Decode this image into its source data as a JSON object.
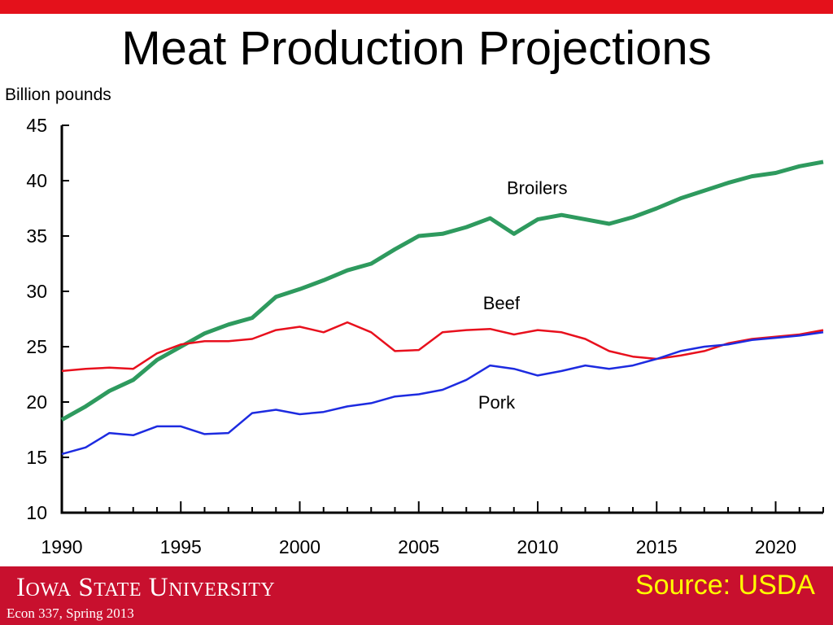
{
  "slide": {
    "title": "Meat Production Projections",
    "logo_text": "Iowa State University",
    "course": "Econ 337, Spring 2013",
    "source": "Source: USDA"
  },
  "colors": {
    "accent_red": "#e4111b",
    "footer_red": "#c8102e",
    "source_yellow": "#ffff00"
  },
  "chart_data": {
    "type": "line",
    "title": "",
    "ylabel": "Billion pounds",
    "xlabel": "",
    "xlim": [
      1990,
      2022
    ],
    "ylim": [
      10,
      45
    ],
    "x_ticks": [
      1990,
      1995,
      2000,
      2005,
      2010,
      2015,
      2020
    ],
    "y_ticks": [
      10,
      15,
      20,
      25,
      30,
      35,
      40,
      45
    ],
    "grid": false,
    "x": [
      1990,
      1991,
      1992,
      1993,
      1994,
      1995,
      1996,
      1997,
      1998,
      1999,
      2000,
      2001,
      2002,
      2003,
      2004,
      2005,
      2006,
      2007,
      2008,
      2009,
      2010,
      2011,
      2012,
      2013,
      2014,
      2015,
      2016,
      2017,
      2018,
      2019,
      2020,
      2021,
      2022
    ],
    "series": [
      {
        "name": "Broilers",
        "color": "#2e9a5e",
        "values": [
          18.4,
          19.6,
          21.0,
          22.0,
          23.8,
          25.0,
          26.2,
          27.0,
          27.6,
          29.5,
          30.2,
          31.0,
          31.9,
          32.5,
          33.8,
          35.0,
          35.2,
          35.8,
          36.6,
          35.2,
          36.5,
          36.9,
          36.5,
          36.1,
          36.7,
          37.5,
          38.4,
          39.1,
          39.8,
          40.4,
          40.7,
          41.3,
          41.7
        ]
      },
      {
        "name": "Beef",
        "color": "#e8101d",
        "values": [
          22.8,
          23.0,
          23.1,
          23.0,
          24.4,
          25.2,
          25.5,
          25.5,
          25.7,
          26.5,
          26.8,
          26.3,
          27.2,
          26.3,
          24.6,
          24.7,
          26.3,
          26.5,
          26.6,
          26.1,
          26.5,
          26.3,
          25.7,
          24.6,
          24.1,
          23.9,
          24.2,
          24.6,
          25.3,
          25.7,
          25.9,
          26.1,
          26.5
        ]
      },
      {
        "name": "Pork",
        "color": "#1d2be0",
        "values": [
          15.3,
          15.9,
          17.2,
          17.0,
          17.8,
          17.8,
          17.1,
          17.2,
          19.0,
          19.3,
          18.9,
          19.1,
          19.6,
          19.9,
          20.5,
          20.7,
          21.1,
          22.0,
          23.3,
          23.0,
          22.4,
          22.8,
          23.3,
          23.0,
          23.3,
          23.9,
          24.6,
          25.0,
          25.2,
          25.6,
          25.8,
          26.0,
          26.3
        ]
      }
    ],
    "annotations": [
      "Broilers",
      "Beef",
      "Pork"
    ]
  }
}
